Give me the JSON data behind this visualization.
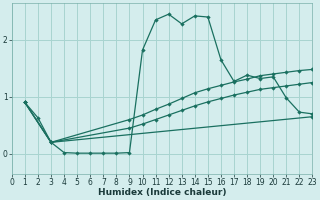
{
  "xlabel": "Humidex (Indice chaleur)",
  "bg_color": "#d4eded",
  "grid_color": "#a8d4d0",
  "line_color": "#1a7060",
  "xlim": [
    0,
    23
  ],
  "ylim": [
    -0.35,
    2.65
  ],
  "yticks": [
    0,
    1,
    2
  ],
  "xticks": [
    0,
    1,
    2,
    3,
    4,
    5,
    6,
    7,
    8,
    9,
    10,
    11,
    12,
    13,
    14,
    15,
    16,
    17,
    18,
    19,
    20,
    21,
    22,
    23
  ],
  "curve1_x": [
    1,
    2,
    3,
    4,
    5,
    6,
    7,
    8,
    9,
    10,
    11,
    12,
    13,
    14,
    15,
    16,
    17,
    18,
    19,
    20,
    21,
    22,
    23
  ],
  "curve1_y": [
    0.9,
    0.63,
    0.2,
    0.02,
    0.01,
    0.01,
    0.01,
    0.01,
    0.02,
    1.82,
    2.35,
    2.45,
    2.28,
    2.42,
    2.4,
    1.65,
    1.27,
    1.38,
    1.32,
    1.35,
    0.98,
    0.73,
    0.7
  ],
  "curve2_x": [
    1,
    3,
    9,
    10,
    11,
    12,
    13,
    14,
    15,
    16,
    17,
    18,
    19,
    20,
    21,
    22,
    23
  ],
  "curve2_y": [
    0.9,
    0.2,
    0.6,
    0.68,
    0.78,
    0.87,
    0.97,
    1.07,
    1.14,
    1.2,
    1.26,
    1.31,
    1.37,
    1.4,
    1.43,
    1.46,
    1.48
  ],
  "curve3_x": [
    1,
    3,
    9,
    10,
    11,
    12,
    13,
    14,
    15,
    16,
    17,
    18,
    19,
    20,
    21,
    22,
    23
  ],
  "curve3_y": [
    0.9,
    0.2,
    0.45,
    0.52,
    0.6,
    0.68,
    0.76,
    0.84,
    0.91,
    0.97,
    1.03,
    1.08,
    1.13,
    1.16,
    1.19,
    1.22,
    1.25
  ],
  "curve4_x": [
    1,
    3,
    23
  ],
  "curve4_y": [
    0.9,
    0.2,
    0.65
  ]
}
